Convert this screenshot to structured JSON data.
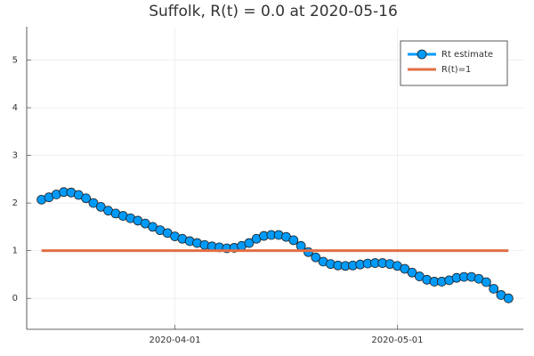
{
  "chart_data": {
    "type": "line",
    "title": "Suffolk, R(t) = 0.0 at 2020-05-16",
    "xlim": [
      "2020-03-12",
      "2020-05-18"
    ],
    "xticks": [
      "2020-04-01",
      "2020-05-01"
    ],
    "ylim": [
      -0.65,
      5.7
    ],
    "yticks": [
      0,
      1,
      2,
      3,
      4,
      5
    ],
    "grid": true,
    "legend": "top-right",
    "series": [
      {
        "name": "Rt estimate",
        "color": "#009af9",
        "markers": true,
        "x": [
          "2020-03-14",
          "2020-03-15",
          "2020-03-16",
          "2020-03-17",
          "2020-03-18",
          "2020-03-19",
          "2020-03-20",
          "2020-03-21",
          "2020-03-22",
          "2020-03-23",
          "2020-03-24",
          "2020-03-25",
          "2020-03-26",
          "2020-03-27",
          "2020-03-28",
          "2020-03-29",
          "2020-03-30",
          "2020-03-31",
          "2020-04-01",
          "2020-04-02",
          "2020-04-03",
          "2020-04-04",
          "2020-04-05",
          "2020-04-06",
          "2020-04-07",
          "2020-04-08",
          "2020-04-09",
          "2020-04-10",
          "2020-04-11",
          "2020-04-12",
          "2020-04-13",
          "2020-04-14",
          "2020-04-15",
          "2020-04-16",
          "2020-04-17",
          "2020-04-18",
          "2020-04-19",
          "2020-04-20",
          "2020-04-21",
          "2020-04-22",
          "2020-04-23",
          "2020-04-24",
          "2020-04-25",
          "2020-04-26",
          "2020-04-27",
          "2020-04-28",
          "2020-04-29",
          "2020-04-30",
          "2020-05-01",
          "2020-05-02",
          "2020-05-03",
          "2020-05-04",
          "2020-05-05",
          "2020-05-06",
          "2020-05-07",
          "2020-05-08",
          "2020-05-09",
          "2020-05-10",
          "2020-05-11",
          "2020-05-12",
          "2020-05-13",
          "2020-05-14",
          "2020-05-15",
          "2020-05-16"
        ],
        "values": [
          2.07,
          2.12,
          2.18,
          2.23,
          2.22,
          2.17,
          2.1,
          2.0,
          1.92,
          1.84,
          1.78,
          1.73,
          1.68,
          1.63,
          1.57,
          1.5,
          1.43,
          1.37,
          1.3,
          1.25,
          1.2,
          1.16,
          1.12,
          1.09,
          1.07,
          1.05,
          1.06,
          1.1,
          1.16,
          1.25,
          1.31,
          1.33,
          1.33,
          1.29,
          1.22,
          1.1,
          0.97,
          0.86,
          0.77,
          0.72,
          0.69,
          0.68,
          0.69,
          0.71,
          0.73,
          0.74,
          0.74,
          0.72,
          0.68,
          0.62,
          0.54,
          0.46,
          0.39,
          0.35,
          0.35,
          0.38,
          0.43,
          0.45,
          0.45,
          0.41,
          0.34,
          0.2,
          0.07,
          0.0
        ]
      },
      {
        "name": "R(t)=1",
        "color": "#e26f46",
        "markers": false,
        "x": [
          "2020-03-14",
          "2020-05-16"
        ],
        "values": [
          1,
          1
        ]
      }
    ]
  }
}
